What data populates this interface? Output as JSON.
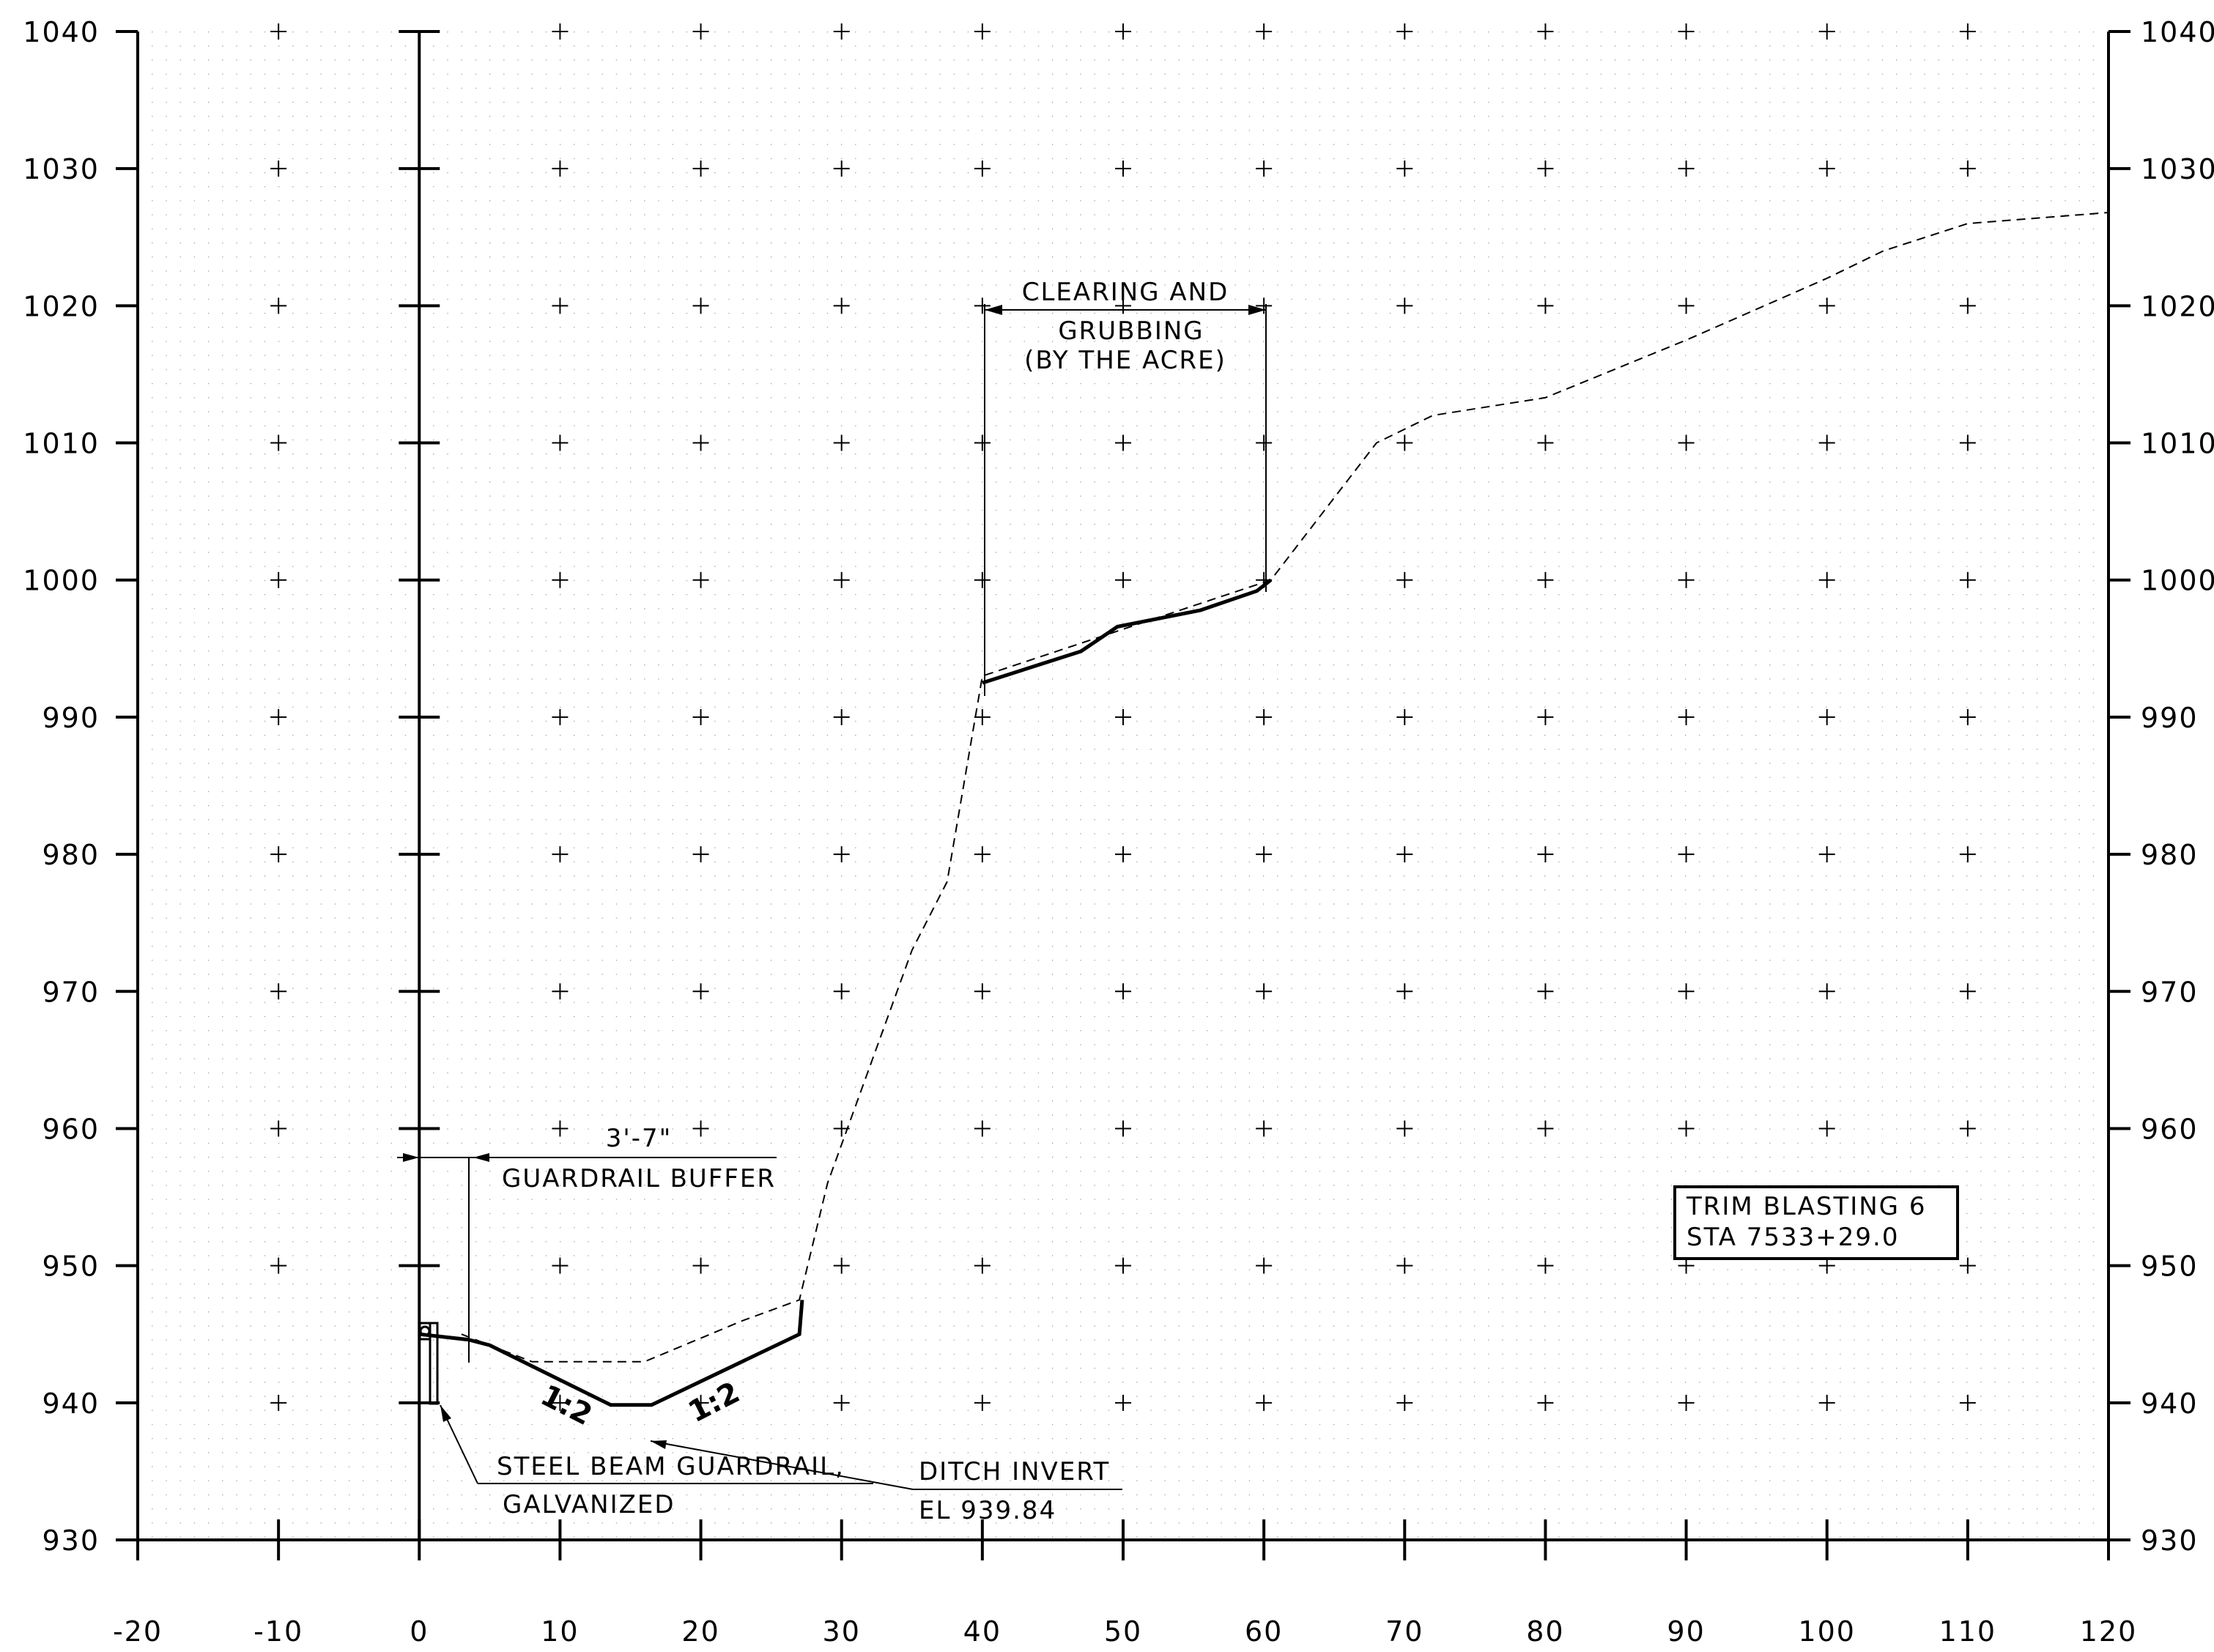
{
  "chart_data": {
    "type": "cross-section",
    "x_ticks": [
      "-20",
      "-10",
      "0",
      "10",
      "20",
      "30",
      "40",
      "50",
      "60",
      "70",
      "80",
      "90",
      "100",
      "110",
      "120"
    ],
    "y_ticks": [
      "930",
      "940",
      "950",
      "960",
      "970",
      "980",
      "990",
      "1000",
      "1010",
      "1020",
      "1030",
      "1040"
    ],
    "xlim": [
      -20,
      120
    ],
    "ylim": [
      930,
      1040
    ],
    "grid": "dotted with cross markers",
    "existing_ground": {
      "name": "",
      "style": "dashed",
      "points": [
        [
          3,
          945
        ],
        [
          8,
          943
        ],
        [
          16,
          943
        ],
        [
          23,
          946
        ],
        [
          27,
          947.5
        ],
        [
          29,
          956
        ],
        [
          35,
          973
        ],
        [
          37.5,
          978
        ],
        [
          40,
          993
        ],
        [
          60.5,
          1000
        ],
        [
          68,
          1010
        ],
        [
          72,
          1012
        ],
        [
          80,
          1013.3
        ],
        [
          90,
          1017.5
        ],
        [
          100,
          1022
        ],
        [
          104,
          1024
        ],
        [
          110,
          1026
        ],
        [
          120,
          1026.8
        ]
      ]
    },
    "proposed_section": {
      "name": "",
      "style": "solid",
      "points": [
        [
          0,
          945
        ],
        [
          3.5,
          944.6
        ],
        [
          5,
          944.2
        ],
        [
          13.6,
          939.84
        ],
        [
          16.5,
          939.84
        ],
        [
          27,
          945
        ],
        [
          27.2,
          947.5
        ]
      ]
    },
    "clearing_line": {
      "name": "",
      "style": "solid",
      "points": [
        [
          40,
          992.5
        ],
        [
          47,
          994.8
        ],
        [
          49.6,
          996.6
        ],
        [
          55.5,
          997.8
        ],
        [
          59.5,
          999.2
        ],
        [
          60.5,
          1000
        ]
      ]
    }
  },
  "labels": {
    "slope_left": "1:2",
    "slope_right": "1:2",
    "clearing_line1": "CLEARING AND",
    "clearing_line2": "GRUBBING",
    "clearing_line3": "(BY THE ACRE)",
    "buffer_dim": "3'-7\"",
    "buffer_label": "GUARDRAIL BUFFER",
    "guardrail_line1": "STEEL BEAM GUARDRAIL,",
    "guardrail_line2": "GALVANIZED",
    "ditch_line1": "DITCH INVERT",
    "ditch_line2": "EL 939.84",
    "station_line1": "TRIM BLASTING 6",
    "station_line2": "STA 7533+29.0"
  }
}
